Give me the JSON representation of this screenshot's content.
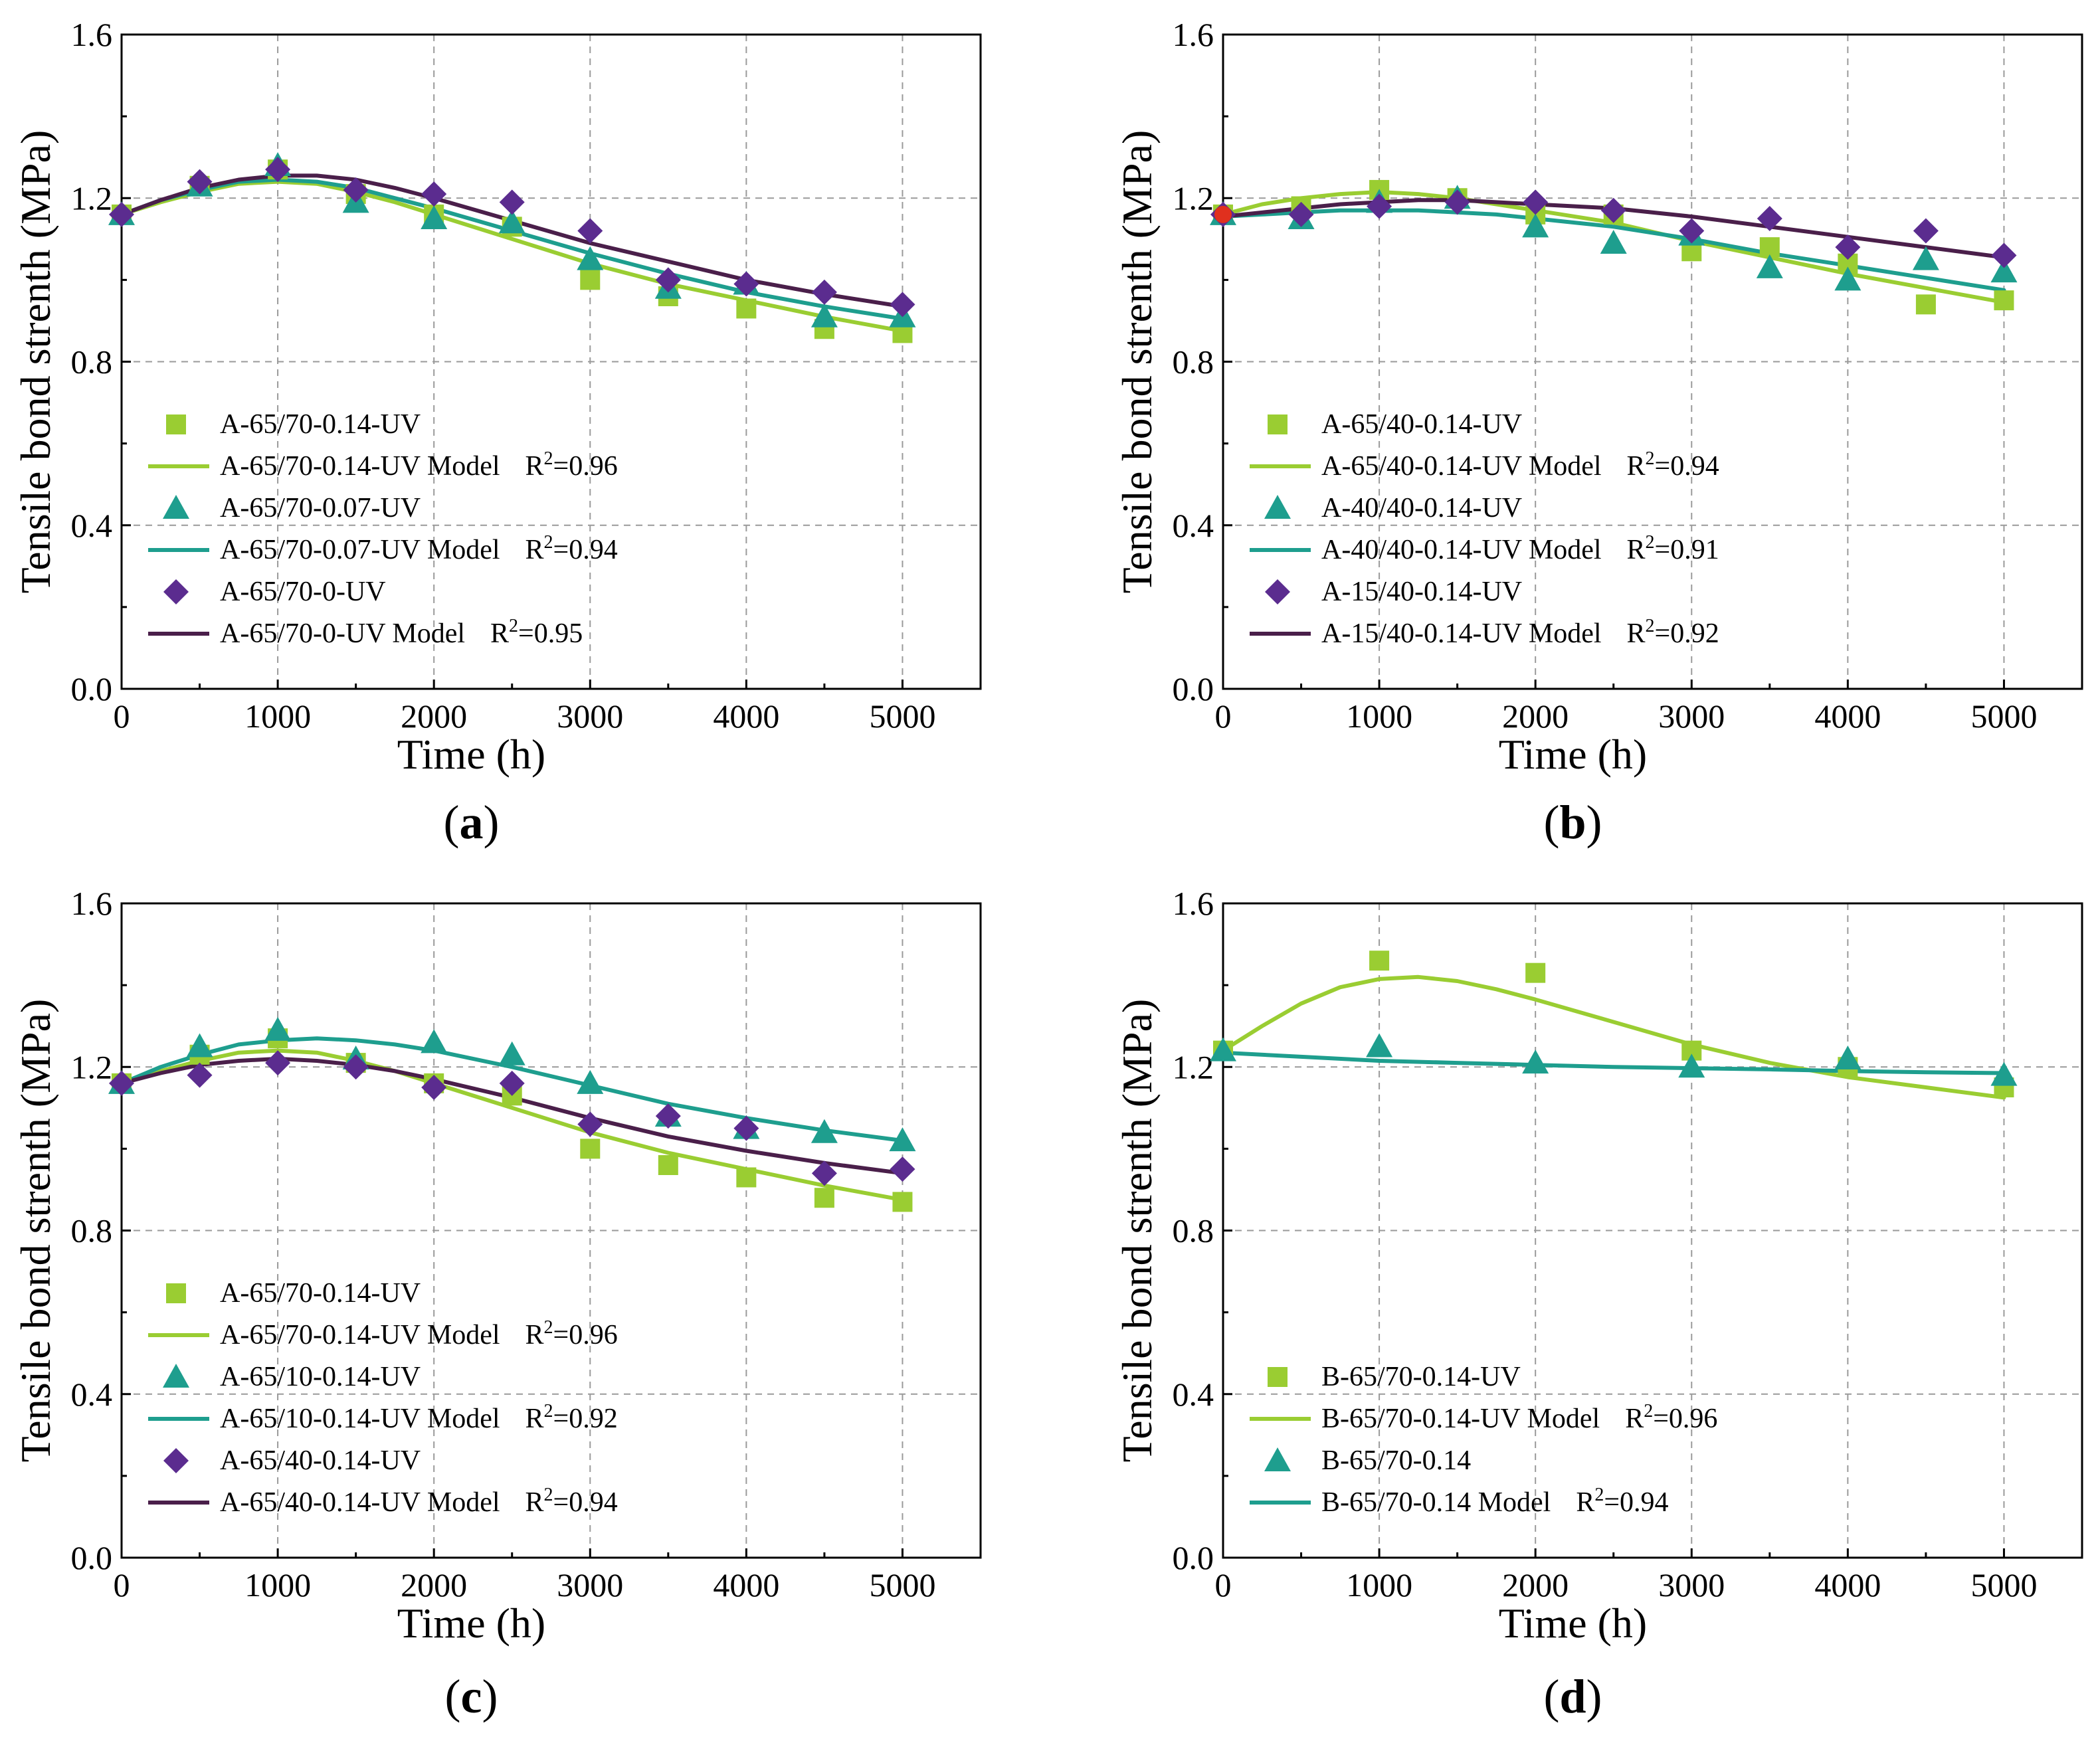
{
  "figure": {
    "background": "#ffffff"
  },
  "chart_data": [
    {
      "type": "line",
      "panel_label": "a",
      "xlabel": "Time (h)",
      "ylabel": "Tensile bond strenth (MPa)",
      "xlim": [
        0,
        5500
      ],
      "ylim": [
        0,
        1.6
      ],
      "xticks": [
        0,
        1000,
        2000,
        3000,
        4000,
        5000
      ],
      "yticks": [
        0.0,
        0.4,
        0.8,
        1.2,
        1.6
      ],
      "ytick_labels": [
        "0.0",
        "0.4",
        "0.8",
        "1.2",
        "1.6"
      ],
      "grid": true,
      "legend_position": "bottom-left",
      "series": [
        {
          "name": "A-65/70-0.14-UV",
          "marker": "square",
          "color": "#9ACD32",
          "x": [
            0,
            500,
            1000,
            1500,
            2000,
            2500,
            3000,
            3500,
            4000,
            4500,
            5000
          ],
          "y": [
            1.16,
            1.23,
            1.27,
            1.21,
            1.16,
            1.13,
            1.0,
            0.96,
            0.93,
            0.88,
            0.87
          ],
          "model_label": "A-65/70-0.14-UV Model",
          "r2_prefix": "R",
          "r2_exp": "2",
          "r2_value": "=0.96",
          "model_x": [
            0,
            250,
            500,
            750,
            1000,
            1250,
            1500,
            1750,
            2000,
            2500,
            3000,
            3500,
            4000,
            4500,
            5000
          ],
          "model_y": [
            1.16,
            1.19,
            1.215,
            1.235,
            1.24,
            1.235,
            1.215,
            1.19,
            1.16,
            1.1,
            1.04,
            0.99,
            0.95,
            0.91,
            0.875
          ]
        },
        {
          "name": "A-65/70-0.07-UV",
          "marker": "triangle",
          "color": "#1E9E8E",
          "x": [
            0,
            500,
            1000,
            1500,
            2000,
            2500,
            3000,
            3500,
            4000,
            4500,
            5000
          ],
          "y": [
            1.16,
            1.23,
            1.28,
            1.19,
            1.15,
            1.14,
            1.05,
            0.98,
            0.99,
            0.91,
            0.91
          ],
          "model_label": "A-65/70-0.07-UV Model",
          "r2_prefix": "R",
          "r2_exp": "2",
          "r2_value": "=0.94",
          "model_x": [
            0,
            250,
            500,
            750,
            1000,
            1250,
            1500,
            1750,
            2000,
            2500,
            3000,
            3500,
            4000,
            4500,
            5000
          ],
          "model_y": [
            1.16,
            1.195,
            1.22,
            1.24,
            1.245,
            1.24,
            1.225,
            1.2,
            1.175,
            1.12,
            1.065,
            1.015,
            0.97,
            0.935,
            0.905
          ]
        },
        {
          "name": "A-65/70-0-UV",
          "marker": "diamond",
          "color": "#5B2C8F",
          "x": [
            0,
            500,
            1000,
            1500,
            2000,
            2500,
            3000,
            3500,
            4000,
            4500,
            5000
          ],
          "y": [
            1.16,
            1.24,
            1.27,
            1.22,
            1.21,
            1.19,
            1.12,
            1.0,
            0.99,
            0.97,
            0.94
          ],
          "model_label": "A-65/70-0-UV Model",
          "r2_prefix": "R",
          "r2_exp": "2",
          "r2_value": "=0.95",
          "model_x": [
            0,
            250,
            500,
            750,
            1000,
            1250,
            1500,
            1750,
            2000,
            2500,
            3000,
            3500,
            4000,
            4500,
            5000
          ],
          "model_y": [
            1.16,
            1.195,
            1.225,
            1.245,
            1.255,
            1.255,
            1.245,
            1.225,
            1.2,
            1.145,
            1.09,
            1.045,
            1.0,
            0.965,
            0.935
          ]
        }
      ],
      "model_line_colors": [
        "#9ACD32",
        "#1E9E8E",
        "#4A1F4A"
      ]
    },
    {
      "type": "line",
      "panel_label": "b",
      "xlabel": "Time (h)",
      "ylabel": "Tensile bond strenth (MPa)",
      "xlim": [
        0,
        5500
      ],
      "ylim": [
        0,
        1.6
      ],
      "xticks": [
        0,
        1000,
        2000,
        3000,
        4000,
        5000
      ],
      "yticks": [
        0.0,
        0.4,
        0.8,
        1.2,
        1.6
      ],
      "ytick_labels": [
        "0.0",
        "0.4",
        "0.8",
        "1.2",
        "1.6"
      ],
      "grid": true,
      "legend_position": "bottom-left",
      "start_marker_color": "#E0301E",
      "series": [
        {
          "name": "A-65/40-0.14-UV",
          "marker": "square",
          "color": "#9ACD32",
          "x": [
            0,
            500,
            1000,
            1500,
            2000,
            2500,
            3000,
            3500,
            4000,
            4500,
            5000
          ],
          "y": [
            1.16,
            1.18,
            1.22,
            1.2,
            1.16,
            1.16,
            1.07,
            1.08,
            1.04,
            0.94,
            0.95
          ],
          "model_label": "A-65/40-0.14-UV Model",
          "r2_prefix": "R",
          "r2_exp": "2",
          "r2_value": "=0.94",
          "model_x": [
            0,
            250,
            500,
            750,
            1000,
            1250,
            1500,
            1750,
            2000,
            2500,
            3000,
            3500,
            4000,
            4500,
            5000
          ],
          "model_y": [
            1.16,
            1.185,
            1.2,
            1.21,
            1.215,
            1.21,
            1.2,
            1.185,
            1.17,
            1.14,
            1.095,
            1.055,
            1.015,
            0.98,
            0.945
          ]
        },
        {
          "name": "A-40/40-0.14-UV",
          "marker": "triangle",
          "color": "#1E9E8E",
          "x": [
            0,
            500,
            1000,
            1500,
            2000,
            2500,
            3000,
            3500,
            4000,
            4500,
            5000
          ],
          "y": [
            1.16,
            1.15,
            1.19,
            1.2,
            1.13,
            1.09,
            1.11,
            1.03,
            1.0,
            1.05,
            1.02
          ],
          "model_label": "A-40/40-0.14-UV Model",
          "r2_prefix": "R",
          "r2_exp": "2",
          "r2_value": "=0.91",
          "model_x": [
            0,
            250,
            500,
            750,
            1000,
            1250,
            1500,
            1750,
            2000,
            2500,
            3000,
            3500,
            4000,
            4500,
            5000
          ],
          "model_y": [
            1.155,
            1.16,
            1.165,
            1.17,
            1.17,
            1.17,
            1.165,
            1.16,
            1.15,
            1.13,
            1.1,
            1.065,
            1.035,
            1.005,
            0.975
          ]
        },
        {
          "name": "A-15/40-0.14-UV",
          "marker": "diamond",
          "color": "#5B2C8F",
          "x": [
            0,
            500,
            1000,
            1500,
            2000,
            2500,
            3000,
            3500,
            4000,
            4500,
            5000
          ],
          "y": [
            1.16,
            1.16,
            1.18,
            1.19,
            1.19,
            1.17,
            1.12,
            1.15,
            1.08,
            1.12,
            1.06
          ],
          "model_label": "A-15/40-0.14-UV Model",
          "r2_prefix": "R",
          "r2_exp": "2",
          "r2_value": "=0.92",
          "model_x": [
            0,
            250,
            500,
            750,
            1000,
            1250,
            1500,
            1750,
            2000,
            2500,
            3000,
            3500,
            4000,
            4500,
            5000
          ],
          "model_y": [
            1.155,
            1.165,
            1.175,
            1.185,
            1.19,
            1.195,
            1.195,
            1.19,
            1.185,
            1.175,
            1.155,
            1.13,
            1.105,
            1.08,
            1.055
          ]
        }
      ],
      "model_line_colors": [
        "#9ACD32",
        "#1E9E8E",
        "#4A1F4A"
      ]
    },
    {
      "type": "line",
      "panel_label": "c",
      "xlabel": "Time (h)",
      "ylabel": "Tensile bond strenth (MPa)",
      "xlim": [
        0,
        5500
      ],
      "ylim": [
        0,
        1.6
      ],
      "xticks": [
        0,
        1000,
        2000,
        3000,
        4000,
        5000
      ],
      "yticks": [
        0.0,
        0.4,
        0.8,
        1.2,
        1.6
      ],
      "ytick_labels": [
        "0.0",
        "0.4",
        "0.8",
        "1.2",
        "1.6"
      ],
      "grid": true,
      "legend_position": "bottom-left",
      "series": [
        {
          "name": "A-65/70-0.14-UV",
          "marker": "square",
          "color": "#9ACD32",
          "x": [
            0,
            500,
            1000,
            1500,
            2000,
            2500,
            3000,
            3500,
            4000,
            4500,
            5000
          ],
          "y": [
            1.16,
            1.23,
            1.27,
            1.21,
            1.16,
            1.13,
            1.0,
            0.96,
            0.93,
            0.88,
            0.87
          ],
          "model_label": "A-65/70-0.14-UV Model",
          "r2_prefix": "R",
          "r2_exp": "2",
          "r2_value": "=0.96",
          "model_x": [
            0,
            250,
            500,
            750,
            1000,
            1250,
            1500,
            1750,
            2000,
            2500,
            3000,
            3500,
            4000,
            4500,
            5000
          ],
          "model_y": [
            1.16,
            1.19,
            1.215,
            1.235,
            1.24,
            1.235,
            1.215,
            1.19,
            1.16,
            1.1,
            1.04,
            0.99,
            0.95,
            0.91,
            0.875
          ]
        },
        {
          "name": "A-65/10-0.14-UV",
          "marker": "triangle",
          "color": "#1E9E8E",
          "x": [
            0,
            500,
            1000,
            1500,
            2000,
            2500,
            3000,
            3500,
            4000,
            4500,
            5000
          ],
          "y": [
            1.16,
            1.25,
            1.29,
            1.22,
            1.26,
            1.23,
            1.16,
            1.08,
            1.05,
            1.04,
            1.02
          ],
          "model_label": "A-65/10-0.14-UV Model",
          "r2_prefix": "R",
          "r2_exp": "2",
          "r2_value": "=0.92",
          "model_x": [
            0,
            250,
            500,
            750,
            1000,
            1250,
            1500,
            1750,
            2000,
            2500,
            3000,
            3500,
            4000,
            4500,
            5000
          ],
          "model_y": [
            1.16,
            1.2,
            1.23,
            1.255,
            1.265,
            1.27,
            1.265,
            1.255,
            1.24,
            1.2,
            1.155,
            1.11,
            1.075,
            1.045,
            1.02
          ]
        },
        {
          "name": "A-65/40-0.14-UV",
          "marker": "diamond",
          "color": "#5B2C8F",
          "x": [
            0,
            500,
            1000,
            1500,
            2000,
            2500,
            3000,
            3500,
            4000,
            4500,
            5000
          ],
          "y": [
            1.16,
            1.18,
            1.21,
            1.2,
            1.15,
            1.16,
            1.06,
            1.08,
            1.05,
            0.94,
            0.95
          ],
          "model_label": "A-65/40-0.14-UV Model",
          "r2_prefix": "R",
          "r2_exp": "2",
          "r2_value": "=0.94",
          "model_x": [
            0,
            250,
            500,
            750,
            1000,
            1250,
            1500,
            1750,
            2000,
            2500,
            3000,
            3500,
            4000,
            4500,
            5000
          ],
          "model_y": [
            1.16,
            1.185,
            1.205,
            1.215,
            1.22,
            1.215,
            1.205,
            1.19,
            1.17,
            1.125,
            1.075,
            1.03,
            0.995,
            0.965,
            0.94
          ]
        }
      ],
      "model_line_colors": [
        "#9ACD32",
        "#1E9E8E",
        "#4A1F4A"
      ]
    },
    {
      "type": "line",
      "panel_label": "d",
      "xlabel": "Time (h)",
      "ylabel": "Tensile bond strenth (MPa)",
      "xlim": [
        0,
        5500
      ],
      "ylim": [
        0,
        1.6
      ],
      "xticks": [
        0,
        1000,
        2000,
        3000,
        4000,
        5000
      ],
      "yticks": [
        0.0,
        0.4,
        0.8,
        1.2,
        1.6
      ],
      "ytick_labels": [
        "0.0",
        "0.4",
        "0.8",
        "1.2",
        "1.6"
      ],
      "grid": true,
      "legend_position": "bottom-left",
      "series": [
        {
          "name": "B-65/70-0.14-UV",
          "marker": "square",
          "color": "#9ACD32",
          "x": [
            0,
            1000,
            2000,
            3000,
            4000,
            5000
          ],
          "y": [
            1.24,
            1.46,
            1.43,
            1.24,
            1.2,
            1.15
          ],
          "model_label": "B-65/70-0.14-UV Model",
          "r2_prefix": "R",
          "r2_exp": "2",
          "r2_value": "=0.96",
          "model_x": [
            0,
            250,
            500,
            750,
            1000,
            1250,
            1500,
            1750,
            2000,
            2500,
            3000,
            3500,
            4000,
            4500,
            5000
          ],
          "model_y": [
            1.24,
            1.3,
            1.355,
            1.395,
            1.415,
            1.42,
            1.41,
            1.39,
            1.365,
            1.31,
            1.255,
            1.21,
            1.175,
            1.15,
            1.125
          ]
        },
        {
          "name": "B-65/70-0.14",
          "marker": "triangle",
          "color": "#1E9E8E",
          "x": [
            0,
            1000,
            2000,
            3000,
            4000,
            5000
          ],
          "y": [
            1.24,
            1.25,
            1.21,
            1.2,
            1.22,
            1.18
          ],
          "model_label": "B-65/70-0.14 Model",
          "r2_prefix": "R",
          "r2_exp": "2",
          "r2_value": "=0.94",
          "model_x": [
            0,
            500,
            1000,
            1500,
            2000,
            2500,
            3000,
            3500,
            4000,
            4500,
            5000
          ],
          "model_y": [
            1.235,
            1.225,
            1.215,
            1.21,
            1.205,
            1.2,
            1.197,
            1.194,
            1.19,
            1.187,
            1.185
          ]
        }
      ],
      "model_line_colors": [
        "#9ACD32",
        "#1E9E8E"
      ]
    }
  ]
}
